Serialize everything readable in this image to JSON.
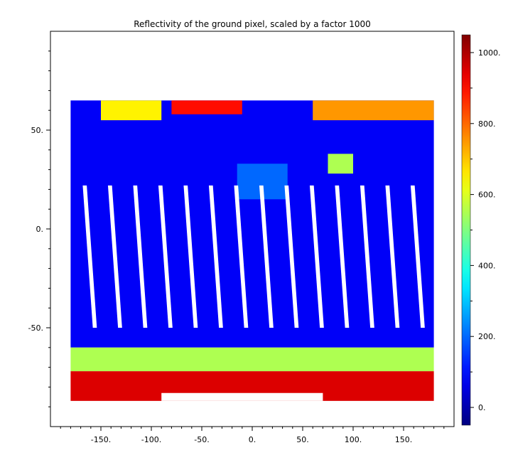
{
  "chart_data": {
    "type": "heatmap",
    "title": "Reflectivity of the ground pixel, scaled by a factor 1000",
    "xlabel": "",
    "ylabel": "",
    "xlim": [
      -200,
      200
    ],
    "ylim": [
      -100,
      100
    ],
    "x_ticks": [
      -150,
      -100,
      -50,
      0,
      50,
      100,
      150
    ],
    "x_tick_labels": [
      "-150.",
      "-100.",
      "-50.",
      "0.",
      "50.",
      "100.",
      "150."
    ],
    "y_ticks": [
      50,
      0,
      -50
    ],
    "y_tick_labels": [
      "50.",
      "0.",
      "-50."
    ],
    "data_extent": {
      "lon": [
        -180,
        180
      ],
      "lat": [
        -87,
        65
      ]
    },
    "colorbar": {
      "range": [
        -50,
        1050
      ],
      "ticks": [
        0,
        200,
        400,
        600,
        800,
        1000
      ],
      "tick_labels": [
        "0.",
        "200.",
        "400.",
        "600.",
        "800.",
        "1000."
      ],
      "colormap": "jet",
      "colors": [
        "#00008f",
        "#0000ff",
        "#00ffff",
        "#ffff00",
        "#ff0000",
        "#800000"
      ]
    },
    "regions": [
      {
        "name": "ocean-background",
        "lon": [
          -180,
          180
        ],
        "lat": [
          -60,
          65
        ],
        "value": 80
      },
      {
        "name": "antarctic-sea-ice",
        "lon": [
          -180,
          180
        ],
        "lat": [
          -72,
          -60
        ],
        "value": 550
      },
      {
        "name": "antarctica",
        "lon": [
          -180,
          180
        ],
        "lat": [
          -87,
          -72
        ],
        "value": 950
      },
      {
        "name": "greenland-arctic",
        "lon": [
          -80,
          -10
        ],
        "lat": [
          58,
          65
        ],
        "value": 900
      },
      {
        "name": "north-canada",
        "lon": [
          -150,
          -90
        ],
        "lat": [
          55,
          65
        ],
        "value": 650
      },
      {
        "name": "siberia-snow",
        "lon": [
          60,
          180
        ],
        "lat": [
          55,
          65
        ],
        "value": 750
      },
      {
        "name": "sahara",
        "lon": [
          -15,
          35
        ],
        "lat": [
          15,
          33
        ],
        "value": 200
      },
      {
        "name": "himalaya",
        "lon": [
          75,
          100
        ],
        "lat": [
          28,
          38
        ],
        "value": 550
      }
    ],
    "no_data_swaths": {
      "count": 14,
      "lat": [
        -50,
        22
      ],
      "description_lon_start": -168,
      "spacing_deg": 25
    }
  }
}
